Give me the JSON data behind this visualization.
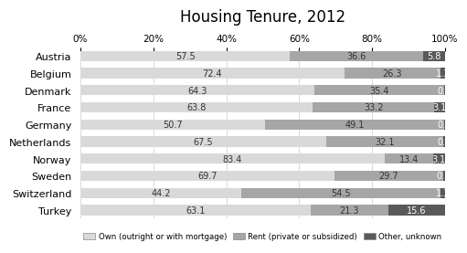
{
  "title": "Housing Tenure, 2012",
  "countries": [
    "Austria",
    "Belgium",
    "Denmark",
    "France",
    "Germany",
    "Netherlands",
    "Norway",
    "Sweden",
    "Switzerland",
    "Turkey"
  ],
  "own": [
    57.5,
    72.4,
    64.3,
    63.8,
    50.7,
    67.5,
    83.4,
    69.7,
    44.2,
    63.1
  ],
  "rent": [
    36.6,
    26.3,
    35.4,
    33.2,
    49.1,
    32.1,
    13.4,
    29.7,
    54.5,
    21.3
  ],
  "other": [
    5.8,
    1.3,
    0.3,
    3.1,
    0.2,
    0.4,
    3.1,
    0.5,
    1.3,
    15.6
  ],
  "color_own": "#d9d9d9",
  "color_rent": "#a6a6a6",
  "color_other": "#595959",
  "legend_labels": [
    "Own (outright or with mortgage)",
    "Rent (private or subsidized)",
    "Other, unknown"
  ],
  "xtick_labels": [
    "0%",
    "20%",
    "40%",
    "60%",
    "80%",
    "100%"
  ],
  "xtick_values": [
    0,
    20,
    40,
    60,
    80,
    100
  ],
  "bar_height": 0.6,
  "label_fontsize": 7,
  "title_fontsize": 12,
  "country_fontsize": 8,
  "xtick_fontsize": 7.5
}
